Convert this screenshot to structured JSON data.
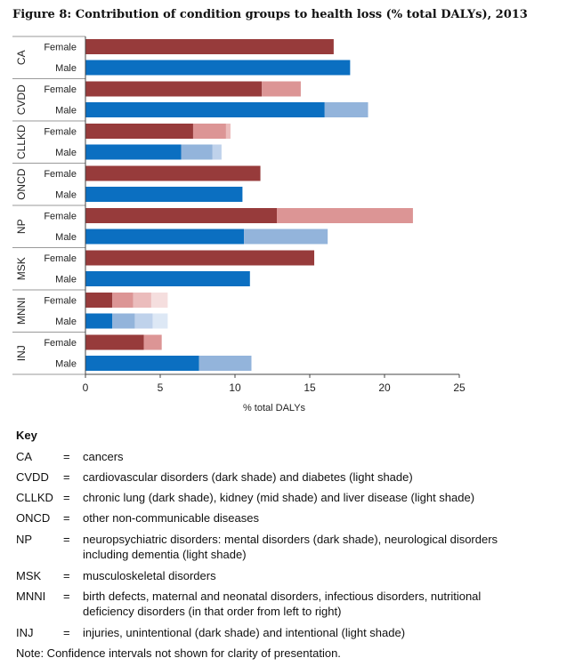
{
  "title": "Figure 8: Contribution of condition groups to health loss (% total DALYs), 2013",
  "chart_data": {
    "type": "bar",
    "orientation": "horizontal",
    "stacked": true,
    "xlabel": "% total  DALYs",
    "xlim": [
      0,
      25
    ],
    "xticks": [
      0,
      5,
      10,
      15,
      20,
      25
    ],
    "grid": false,
    "colors": {
      "Female": [
        "#973b3b",
        "#dc9595",
        "#ebbcbc",
        "#f5dede"
      ],
      "Male": [
        "#0b6fc1",
        "#93b4db",
        "#bfd2eb",
        "#dde8f5"
      ]
    },
    "groups": [
      {
        "group": "CA",
        "bars": [
          {
            "sex": "Female",
            "segments": [
              16.6
            ]
          },
          {
            "sex": "Male",
            "segments": [
              17.7
            ]
          }
        ]
      },
      {
        "group": "CVDD",
        "bars": [
          {
            "sex": "Female",
            "segments": [
              11.8,
              2.6
            ]
          },
          {
            "sex": "Male",
            "segments": [
              16.0,
              2.9
            ]
          }
        ]
      },
      {
        "group": "CLLKD",
        "bars": [
          {
            "sex": "Female",
            "segments": [
              7.2,
              2.2,
              0.3
            ]
          },
          {
            "sex": "Male",
            "segments": [
              6.4,
              2.1,
              0.6
            ]
          }
        ]
      },
      {
        "group": "ONCD",
        "bars": [
          {
            "sex": "Female",
            "segments": [
              11.7
            ]
          },
          {
            "sex": "Male",
            "segments": [
              10.5
            ]
          }
        ]
      },
      {
        "group": "NP",
        "bars": [
          {
            "sex": "Female",
            "segments": [
              12.8,
              9.1
            ]
          },
          {
            "sex": "Male",
            "segments": [
              10.6,
              5.6
            ]
          }
        ]
      },
      {
        "group": "MSK",
        "bars": [
          {
            "sex": "Female",
            "segments": [
              15.3
            ]
          },
          {
            "sex": "Male",
            "segments": [
              11.0
            ]
          }
        ]
      },
      {
        "group": "MNNI",
        "bars": [
          {
            "sex": "Female",
            "segments": [
              1.8,
              1.4,
              1.2,
              1.1
            ]
          },
          {
            "sex": "Male",
            "segments": [
              1.8,
              1.5,
              1.2,
              1.0
            ]
          }
        ]
      },
      {
        "group": "INJ",
        "bars": [
          {
            "sex": "Female",
            "segments": [
              3.9,
              1.2
            ]
          },
          {
            "sex": "Male",
            "segments": [
              7.6,
              3.5
            ]
          }
        ]
      }
    ]
  },
  "key": {
    "title": "Key",
    "entries": [
      {
        "abbr": "CA",
        "eq": "=",
        "desc": "cancers"
      },
      {
        "abbr": "CVDD",
        "eq": "=",
        "desc": "cardiovascular disorders (dark shade) and diabetes (light shade)"
      },
      {
        "abbr": "CLLKD",
        "eq": "=",
        "desc": "chronic lung (dark shade), kidney (mid shade) and liver disease (light shade)"
      },
      {
        "abbr": "ONCD",
        "eq": "=",
        "desc": "other non-communicable diseases"
      },
      {
        "abbr": "NP",
        "eq": "=",
        "desc": "neuropsychiatric disorders: mental disorders (dark shade), neurological disorders including dementia (light shade)"
      },
      {
        "abbr": "MSK",
        "eq": "=",
        "desc": "musculoskeletal disorders"
      },
      {
        "abbr": "MNNI",
        "eq": "=",
        "desc": "birth defects, maternal and neonatal disorders, infectious disorders, nutritional deficiency disorders (in that order from left to right)"
      },
      {
        "abbr": "INJ",
        "eq": "=",
        "desc": "injuries, unintentional (dark shade) and intentional (light shade)"
      }
    ],
    "note": "Note: Confidence intervals not shown for clarity of presentation."
  }
}
